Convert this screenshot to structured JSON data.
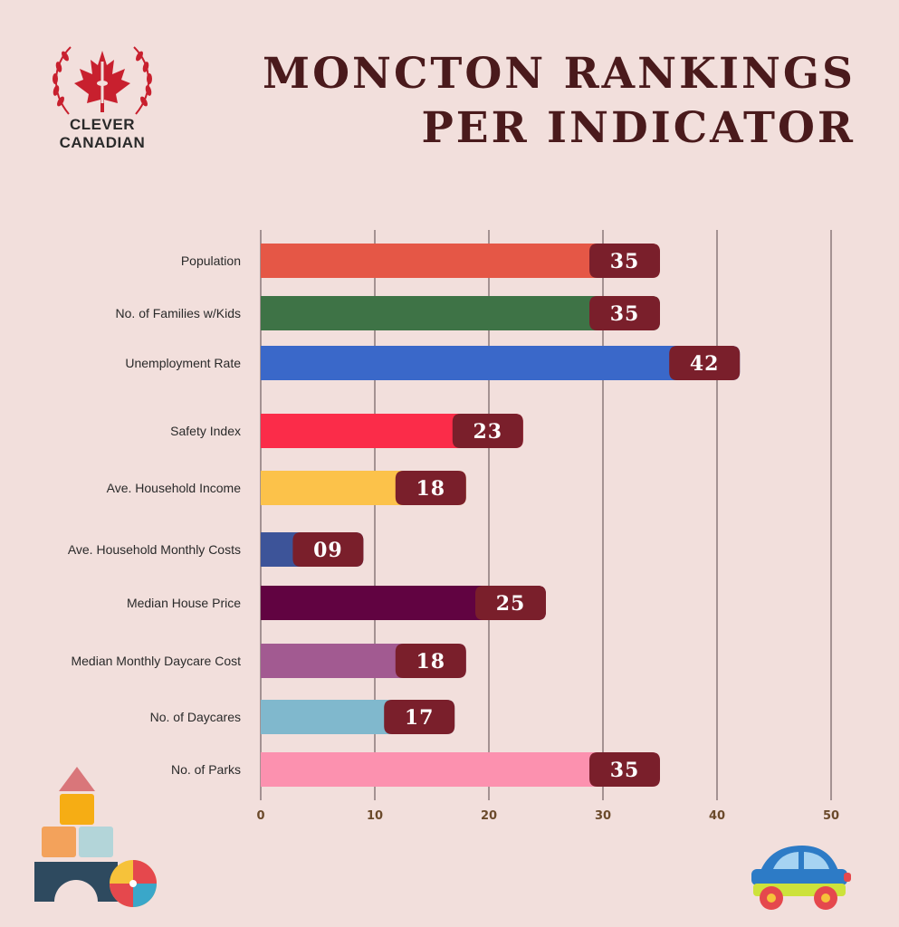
{
  "brand": {
    "line1": "CLEVER",
    "line2": "CANADIAN"
  },
  "title": {
    "line1": "MONCTON RANKINGS",
    "line2": "PER INDICATOR"
  },
  "colors": {
    "label_bg": "#7a1f2b",
    "grid": "#7a6a6a",
    "tick_text": "#6b4a2b",
    "category_text": "#2a2a2a"
  },
  "chart_data": {
    "type": "bar",
    "orientation": "horizontal",
    "title": "MONCTON RANKINGS PER INDICATOR",
    "xlabel": "",
    "ylabel": "",
    "xlim": [
      0,
      50
    ],
    "xticks": [
      0,
      10,
      20,
      30,
      40,
      50
    ],
    "grid": true,
    "categories": [
      "Population",
      "No. of Families w/Kids",
      "Unemployment Rate",
      "Safety Index",
      "Ave. Household Income",
      "Ave. Household Monthly Costs",
      "Median House Price",
      "Median Monthly Daycare Cost",
      "No. of Daycares",
      "No. of Parks"
    ],
    "values": [
      35,
      35,
      42,
      23,
      18,
      9,
      25,
      18,
      17,
      35
    ],
    "value_labels": [
      "35",
      "35",
      "42",
      "23",
      "18",
      "09",
      "25",
      "18",
      "17",
      "35"
    ],
    "bar_colors": [
      "#e55746",
      "#3e7346",
      "#3a68c9",
      "#fb2c49",
      "#fcc24a",
      "#3d5499",
      "#610341",
      "#a25a91",
      "#80b8cd",
      "#fc91af"
    ]
  }
}
